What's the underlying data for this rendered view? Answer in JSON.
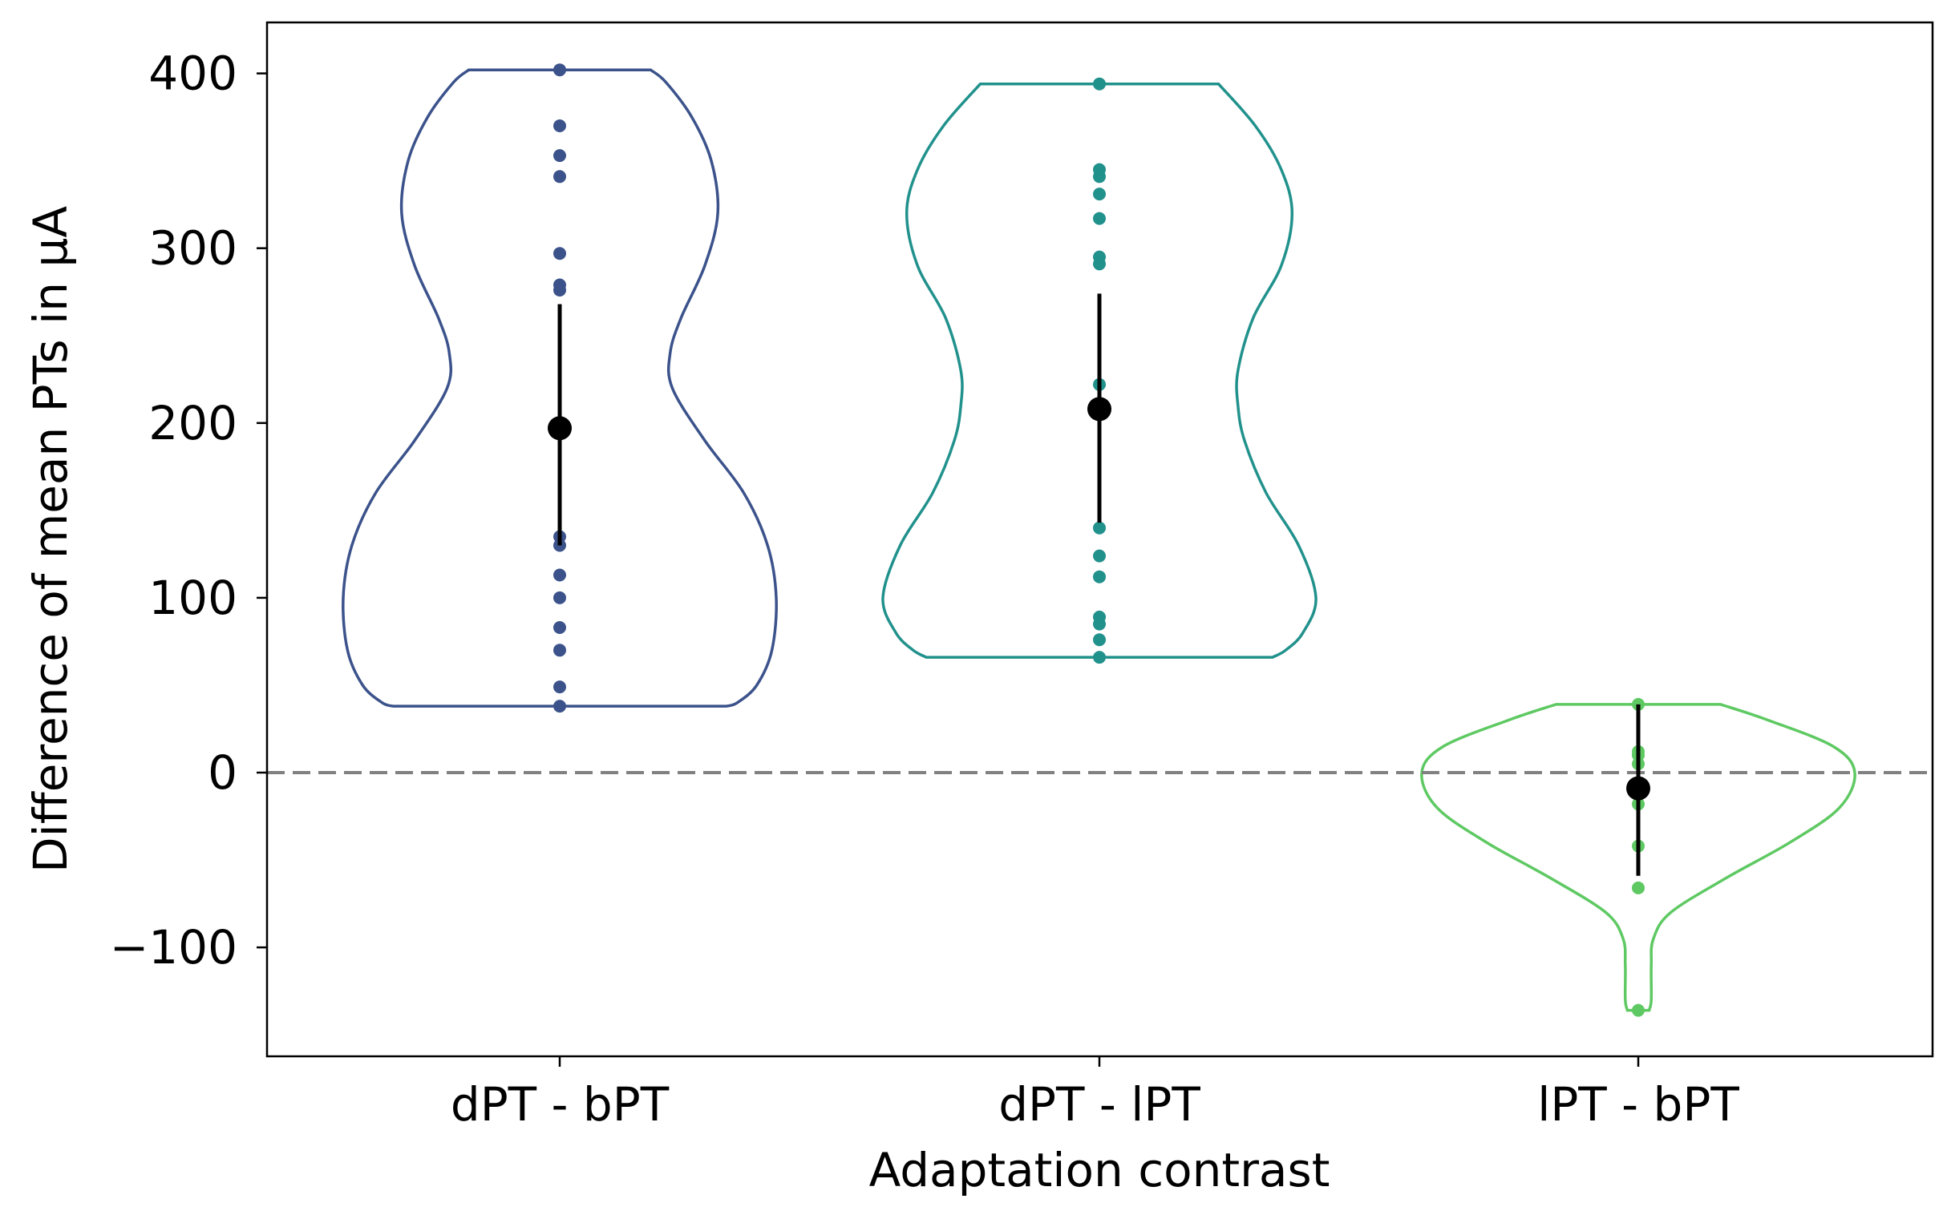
{
  "chart_data": {
    "type": "violin",
    "title": "",
    "xlabel": "Adaptation contrast",
    "ylabel": "Difference of mean PTs in μA",
    "ylim": [
      -160,
      430
    ],
    "yticks": [
      -100,
      0,
      100,
      200,
      300,
      400
    ],
    "ytick_labels": [
      "−100",
      "0",
      "100",
      "200",
      "300",
      "400"
    ],
    "categories": [
      "dPT - bPT",
      "dPT - lPT",
      "lPT - bPT"
    ],
    "reference_line": {
      "y": 0,
      "style": "dashed",
      "color": "#808080"
    },
    "grid": false,
    "legend": "none",
    "series": [
      {
        "category": "dPT - bPT",
        "color": "#3b528b",
        "points": [
          402,
          370,
          353,
          341,
          297,
          279,
          276,
          135,
          130,
          113,
          100,
          83,
          70,
          49,
          38
        ],
        "mean": 197,
        "ci": [
          130,
          268
        ],
        "density": [
          [
            38,
            0.77
          ],
          [
            40,
            0.82
          ],
          [
            50,
            0.91
          ],
          [
            70,
            0.98
          ],
          [
            100,
            1.0
          ],
          [
            130,
            0.96
          ],
          [
            160,
            0.85
          ],
          [
            190,
            0.67
          ],
          [
            220,
            0.52
          ],
          [
            240,
            0.51
          ],
          [
            260,
            0.56
          ],
          [
            290,
            0.67
          ],
          [
            320,
            0.73
          ],
          [
            350,
            0.7
          ],
          [
            375,
            0.61
          ],
          [
            395,
            0.49
          ],
          [
            402,
            0.42
          ]
        ]
      },
      {
        "category": "dPT - lPT",
        "color": "#21918c",
        "points": [
          394,
          345,
          341,
          331,
          317,
          295,
          291,
          222,
          140,
          124,
          112,
          89,
          85,
          76,
          66
        ],
        "mean": 208,
        "ci": [
          143,
          274
        ],
        "density": [
          [
            66,
            0.8
          ],
          [
            70,
            0.86
          ],
          [
            80,
            0.94
          ],
          [
            100,
            1.0
          ],
          [
            130,
            0.92
          ],
          [
            160,
            0.77
          ],
          [
            190,
            0.67
          ],
          [
            210,
            0.64
          ],
          [
            230,
            0.64
          ],
          [
            260,
            0.71
          ],
          [
            290,
            0.84
          ],
          [
            320,
            0.89
          ],
          [
            345,
            0.84
          ],
          [
            370,
            0.72
          ],
          [
            394,
            0.55
          ]
        ]
      },
      {
        "category": "lPT - bPT",
        "color": "#5ec962",
        "points": [
          39,
          12,
          10,
          5,
          -10,
          -18,
          -42,
          -66,
          -136
        ],
        "mean": -9,
        "ci": [
          -59,
          39
        ],
        "density": [
          [
            -136,
            0.05
          ],
          [
            -130,
            0.06
          ],
          [
            -110,
            0.06
          ],
          [
            -95,
            0.07
          ],
          [
            -80,
            0.15
          ],
          [
            -60,
            0.41
          ],
          [
            -40,
            0.7
          ],
          [
            -20,
            0.93
          ],
          [
            0,
            1.0
          ],
          [
            15,
            0.9
          ],
          [
            30,
            0.6
          ],
          [
            39,
            0.38
          ]
        ]
      }
    ]
  }
}
